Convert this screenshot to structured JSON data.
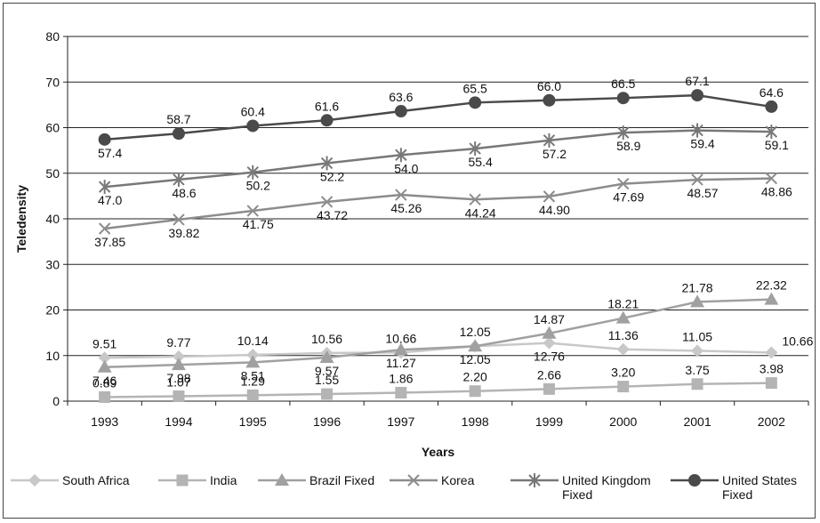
{
  "chart_data": {
    "type": "line",
    "title": "",
    "xlabel": "Years",
    "ylabel": "Teledensity",
    "ylim": [
      0,
      80
    ],
    "yticks": [
      "0",
      "10",
      "20",
      "30",
      "40",
      "50",
      "60",
      "70",
      "80"
    ],
    "grid": true,
    "legend_position": "bottom",
    "categories": [
      "1993",
      "1994",
      "1995",
      "1996",
      "1997",
      "1998",
      "1999",
      "2000",
      "2001",
      "2002"
    ],
    "series": [
      {
        "name": "South Africa",
        "marker": "diamond",
        "color": "#c8c8c8",
        "values": [
          9.51,
          9.77,
          10.14,
          10.56,
          10.66,
          12.05,
          12.76,
          11.36,
          11.05,
          10.66
        ],
        "labels": [
          "9.51",
          "9.77",
          "10.14",
          "10.56",
          "10.66",
          "12.05",
          "12.76",
          "11.36",
          "11.05",
          "10.66"
        ]
      },
      {
        "name": "India",
        "marker": "square",
        "color": "#b4b4b4",
        "values": [
          0.89,
          1.07,
          1.29,
          1.55,
          1.86,
          2.2,
          2.66,
          3.2,
          3.75,
          3.98
        ],
        "labels": [
          "0.89",
          "1.07",
          "1.29",
          "1.55",
          "1.86",
          "2.20",
          "2.66",
          "3.20",
          "3.75",
          "3.98"
        ]
      },
      {
        "name": "Brazil Fixed",
        "marker": "triangle",
        "color": "#a0a0a0",
        "values": [
          7.46,
          7.98,
          8.51,
          9.57,
          11.27,
          12.05,
          14.87,
          18.21,
          21.78,
          22.32
        ],
        "labels": [
          "7.46",
          "7.98",
          "8.51",
          "9.57",
          "11.27",
          "12.05",
          "14.87",
          "18.21",
          "21.78",
          "22.32"
        ]
      },
      {
        "name": "Korea",
        "marker": "x",
        "color": "#8c8c8c",
        "values": [
          37.85,
          39.82,
          41.75,
          43.72,
          45.26,
          44.24,
          44.9,
          47.69,
          48.57,
          48.86
        ],
        "labels": [
          "37.85",
          "39.82",
          "41.75",
          "43.72",
          "45.26",
          "44.24",
          "44.90",
          "47.69",
          "48.57",
          "48.86"
        ]
      },
      {
        "name": "United Kingdom Fixed",
        "legend_lines": [
          "United Kingdom",
          "Fixed"
        ],
        "marker": "star",
        "color": "#787878",
        "values": [
          47.0,
          48.6,
          50.2,
          52.2,
          54.0,
          55.4,
          57.2,
          58.9,
          59.4,
          59.1
        ],
        "labels": [
          "47.0",
          "48.6",
          "50.2",
          "52.2",
          "54.0",
          "55.4",
          "57.2",
          "58.9",
          "59.4",
          "59.1"
        ]
      },
      {
        "name": "United States Fixed",
        "legend_lines": [
          "United States",
          "Fixed"
        ],
        "marker": "circle",
        "color": "#4a4a4a",
        "values": [
          57.4,
          58.7,
          60.4,
          61.6,
          63.6,
          65.5,
          66.0,
          66.5,
          67.1,
          64.6
        ],
        "labels": [
          "57.4",
          "58.7",
          "60.4",
          "61.6",
          "63.6",
          "65.5",
          "66.0",
          "66.5",
          "67.1",
          "64.6"
        ]
      }
    ]
  }
}
